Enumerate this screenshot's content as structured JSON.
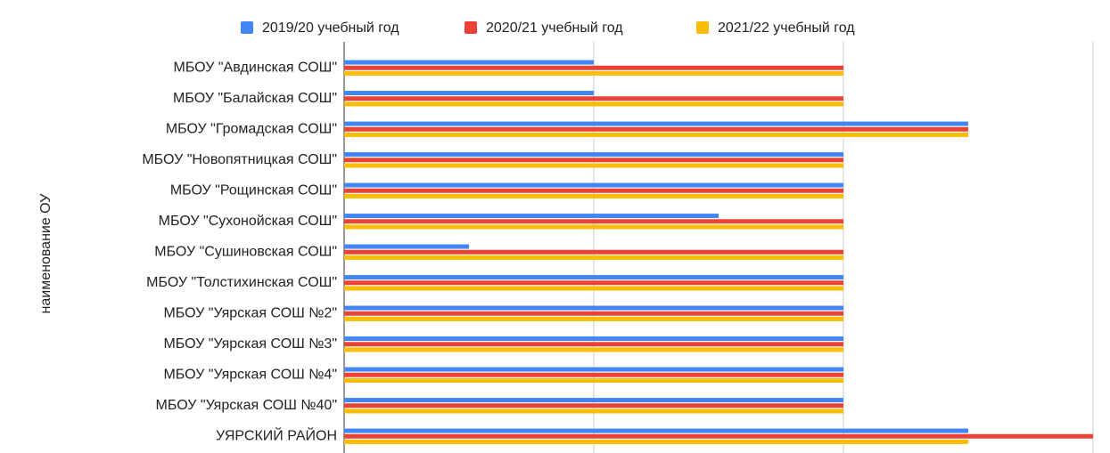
{
  "chart_data": {
    "type": "bar",
    "orientation": "horizontal",
    "y_axis_label": "наименование ОУ",
    "categories": [
      "МБОУ \"Авдинская СОШ\"",
      "МБОУ \"Балайская СОШ\"",
      "МБОУ \"Громадская СОШ\"",
      "МБОУ \"Новопятницкая СОШ\"",
      "МБОУ \"Рощинская СОШ\"",
      "МБОУ \"Сухонойская СОШ\"",
      "МБОУ \"Сушиновская СОШ\"",
      "МБОУ \"Толстихинская СОШ\"",
      "МБОУ \"Уярская СОШ №2\"",
      "МБОУ \"Уярская СОШ №3\"",
      "МБОУ \"Уярская СОШ №4\"",
      "МБОУ \"Уярская СОШ №40\"",
      "УЯРСКИЙ РАЙОН"
    ],
    "series": [
      {
        "name": "2019/20 учебный год",
        "color": "#4285f4",
        "values": [
          1,
          1,
          2.5,
          2,
          2,
          1.5,
          0.5,
          2,
          2,
          2,
          2,
          2,
          2.5
        ]
      },
      {
        "name": "2020/21 учебный год",
        "color": "#ea4335",
        "values": [
          2,
          2,
          2.5,
          2,
          2,
          2,
          2,
          2,
          2,
          2,
          2,
          2,
          3
        ]
      },
      {
        "name": "2021/22 учебный год",
        "color": "#fbbc04",
        "values": [
          2,
          2,
          2.5,
          2,
          2,
          2,
          2,
          2,
          2,
          2,
          2,
          2,
          2.5
        ]
      }
    ],
    "xlim": [
      0,
      3
    ],
    "xticks": [
      0,
      1,
      2,
      3
    ],
    "grid": true,
    "legend": "top"
  }
}
